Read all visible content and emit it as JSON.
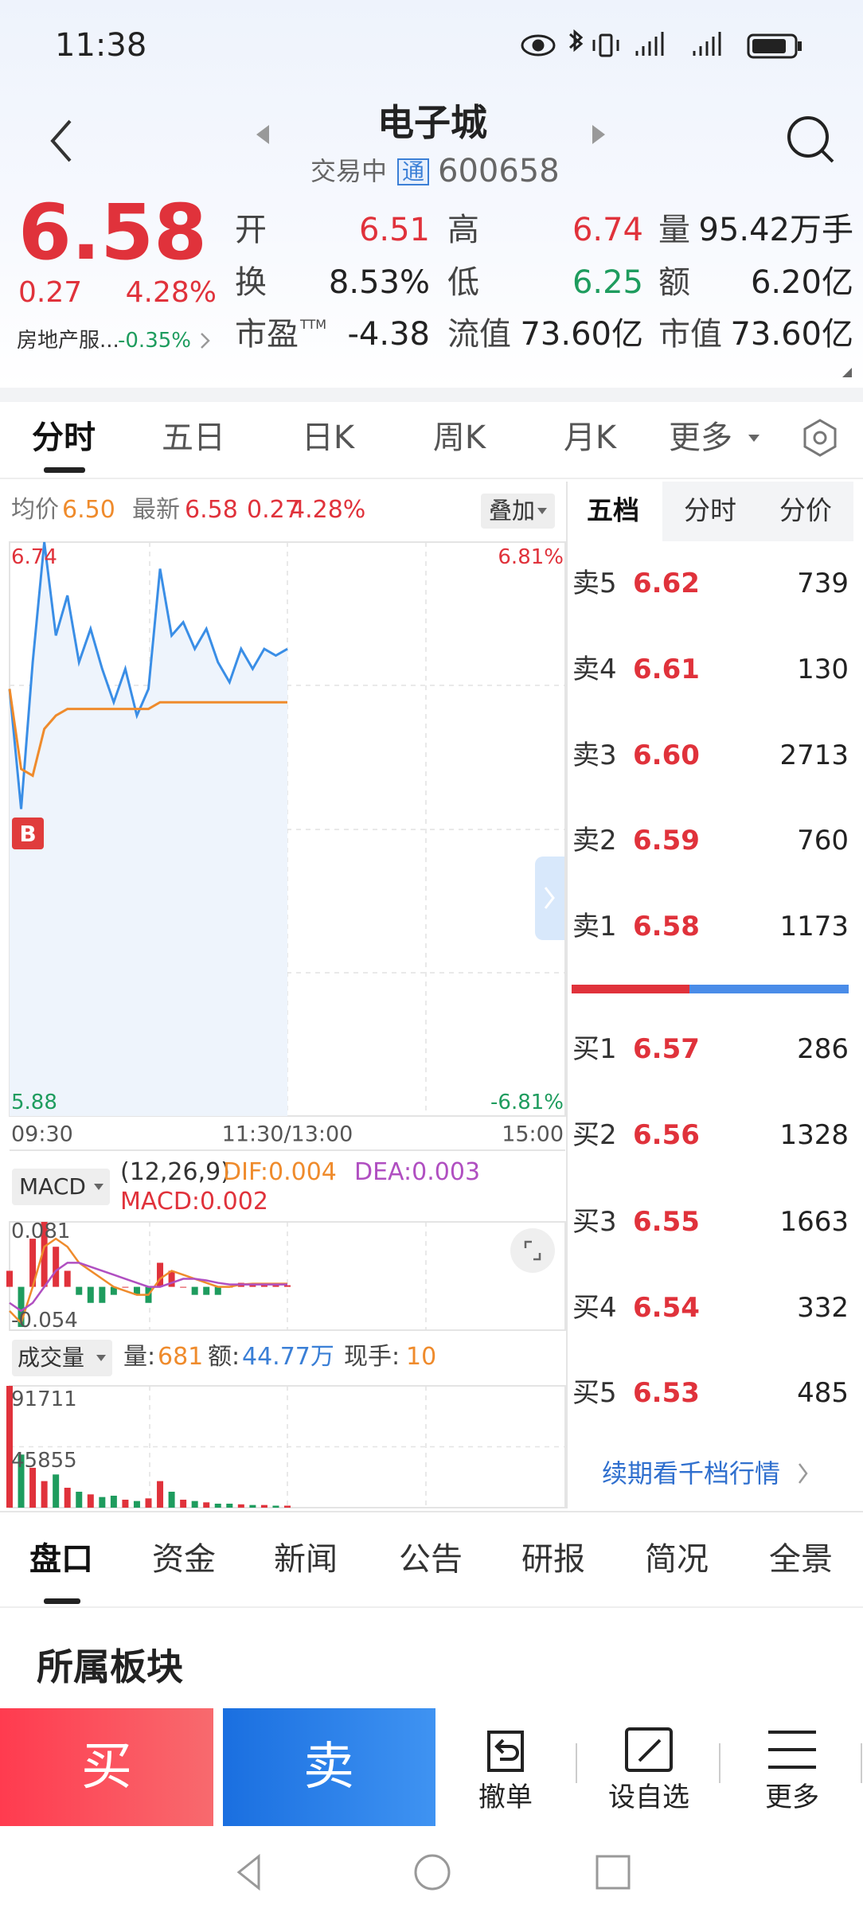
{
  "status_bar": {
    "time": "11:38"
  },
  "header": {
    "title": "电子城",
    "status": "交易中",
    "badge": "通",
    "code": "600658"
  },
  "quote": {
    "price": "6.58",
    "change": "0.27",
    "change_pct": "4.28%",
    "sector": "房地产服...",
    "sector_change": "-0.35%",
    "fields": [
      {
        "label": "开",
        "value": "6.51",
        "color": "#e0323b"
      },
      {
        "label": "高",
        "value": "6.74",
        "color": "#e0323b"
      },
      {
        "label": "量",
        "value": "95.42万手",
        "color": "#222222"
      },
      {
        "label": "换",
        "value": "8.53%",
        "color": "#222222"
      },
      {
        "label": "低",
        "value": "6.25",
        "color": "#1e9c5e"
      },
      {
        "label": "额",
        "value": "6.20亿",
        "color": "#222222"
      },
      {
        "label": "市盈",
        "sup": "TTM",
        "value": "-4.38",
        "color": "#222222"
      },
      {
        "label": "流值",
        "value": "73.60亿",
        "color": "#222222"
      },
      {
        "label": "市值",
        "value": "73.60亿",
        "color": "#222222"
      }
    ]
  },
  "chart_tabs": [
    "分时",
    "五日",
    "日K",
    "周K",
    "月K",
    "更多"
  ],
  "intraday": {
    "type": "line",
    "average": "6.50",
    "latest": "6.58",
    "change": "0.27",
    "change_pct": "4.28%",
    "overlay": "叠加",
    "marker": "B",
    "x_labels": [
      "09:30",
      "11:30/13:00",
      "15:00"
    ],
    "ylim": [
      5.88,
      6.74
    ],
    "yticks": [
      5.88,
      6.74
    ],
    "y2lim": [
      -6.81,
      6.81
    ],
    "y2ticks": [
      {
        "value": -6.81,
        "label": "-6.81%"
      },
      {
        "value": 6.81,
        "label": "6.81%"
      }
    ],
    "series": [
      {
        "name": "最新",
        "color": "#3a8ee6",
        "values": [
          6.52,
          6.34,
          6.56,
          6.74,
          6.6,
          6.66,
          6.56,
          6.61,
          6.55,
          6.5,
          6.55,
          6.48,
          6.52,
          6.7,
          6.6,
          6.62,
          6.58,
          6.61,
          6.56,
          6.53,
          6.58,
          6.55,
          6.58,
          6.57,
          6.58
        ]
      },
      {
        "name": "均价",
        "color": "#ef8b2c",
        "values": [
          6.52,
          6.4,
          6.39,
          6.46,
          6.48,
          6.49,
          6.49,
          6.49,
          6.49,
          6.49,
          6.49,
          6.49,
          6.49,
          6.5,
          6.5,
          6.5,
          6.5,
          6.5,
          6.5,
          6.5,
          6.5,
          6.5,
          6.5,
          6.5,
          6.5
        ]
      }
    ]
  },
  "macd": {
    "type": "bar",
    "selector": "MACD",
    "params": "(12,26,9)",
    "dif_label": "DIF:0.004",
    "dea_label": "DEA:0.003",
    "macd_label": "MACD:0.002",
    "ylim": [
      -0.054,
      0.081
    ],
    "yticks": [
      -0.054,
      0.081
    ],
    "up_color": "#e0323b",
    "down_color": "#1e9c5e",
    "values": [
      0.02,
      -0.05,
      0.06,
      0.081,
      0.05,
      0.02,
      -0.01,
      -0.02,
      -0.02,
      -0.01,
      0.0,
      -0.01,
      -0.02,
      0.03,
      0.02,
      0.0,
      -0.01,
      -0.01,
      -0.01,
      0.0,
      0.005,
      0.004,
      0.003,
      0.002,
      0.002
    ],
    "series": [
      {
        "color": "#ef8b2c",
        "values": [
          -0.03,
          -0.045,
          0.0,
          0.05,
          0.06,
          0.05,
          0.03,
          0.02,
          0.01,
          0.0,
          -0.005,
          -0.01,
          -0.01,
          0.01,
          0.02,
          0.015,
          0.01,
          0.005,
          0.0,
          0.0,
          0.003,
          0.004,
          0.004,
          0.004,
          0.004
        ]
      },
      {
        "color": "#b04fc1",
        "values": [
          -0.02,
          -0.03,
          -0.02,
          0.0,
          0.02,
          0.03,
          0.03,
          0.025,
          0.02,
          0.015,
          0.01,
          0.005,
          0.0,
          0.0,
          0.005,
          0.01,
          0.01,
          0.008,
          0.005,
          0.003,
          0.003,
          0.003,
          0.003,
          0.003,
          0.003
        ]
      }
    ]
  },
  "volume": {
    "type": "bar",
    "selector": "成交量",
    "vol_label": "量:",
    "vol_value": "681",
    "amt_label": "额:",
    "amt_value": "44.77万",
    "hand_label": "现手:",
    "hand_value": "10",
    "ylim": [
      0,
      91711
    ],
    "yticks": [
      45855,
      91711
    ],
    "up_color": "#e0323b",
    "down_color": "#1e9c5e",
    "values": [
      91711,
      40000,
      30000,
      20000,
      25000,
      15000,
      12000,
      10000,
      8000,
      9000,
      6000,
      5000,
      7000,
      20000,
      12000,
      6000,
      5000,
      4000,
      3000,
      3000,
      2500,
      2000,
      2000,
      1500,
      1500
    ]
  },
  "order_book": {
    "tabs": [
      "五档",
      "分时",
      "分价"
    ],
    "asks": [
      {
        "label": "卖5",
        "price": "6.62",
        "volume": "739"
      },
      {
        "label": "卖4",
        "price": "6.61",
        "volume": "130"
      },
      {
        "label": "卖3",
        "price": "6.60",
        "volume": "2713"
      },
      {
        "label": "卖2",
        "price": "6.59",
        "volume": "760"
      },
      {
        "label": "卖1",
        "price": "6.58",
        "volume": "1173"
      }
    ],
    "bids": [
      {
        "label": "买1",
        "price": "6.57",
        "volume": "286"
      },
      {
        "label": "买2",
        "price": "6.56",
        "volume": "1328"
      },
      {
        "label": "买3",
        "price": "6.55",
        "volume": "1663"
      },
      {
        "label": "买4",
        "price": "6.54",
        "volume": "332"
      },
      {
        "label": "买5",
        "price": "6.53",
        "volume": "485"
      }
    ],
    "more": "续期看千档行情"
  },
  "bottom_tabs": [
    "盘口",
    "资金",
    "新闻",
    "公告",
    "研报",
    "简况",
    "全景"
  ],
  "section_title": "所属板块",
  "actions": {
    "buy": "买",
    "sell": "卖",
    "items": [
      "撤单",
      "设自选",
      "更多"
    ]
  }
}
